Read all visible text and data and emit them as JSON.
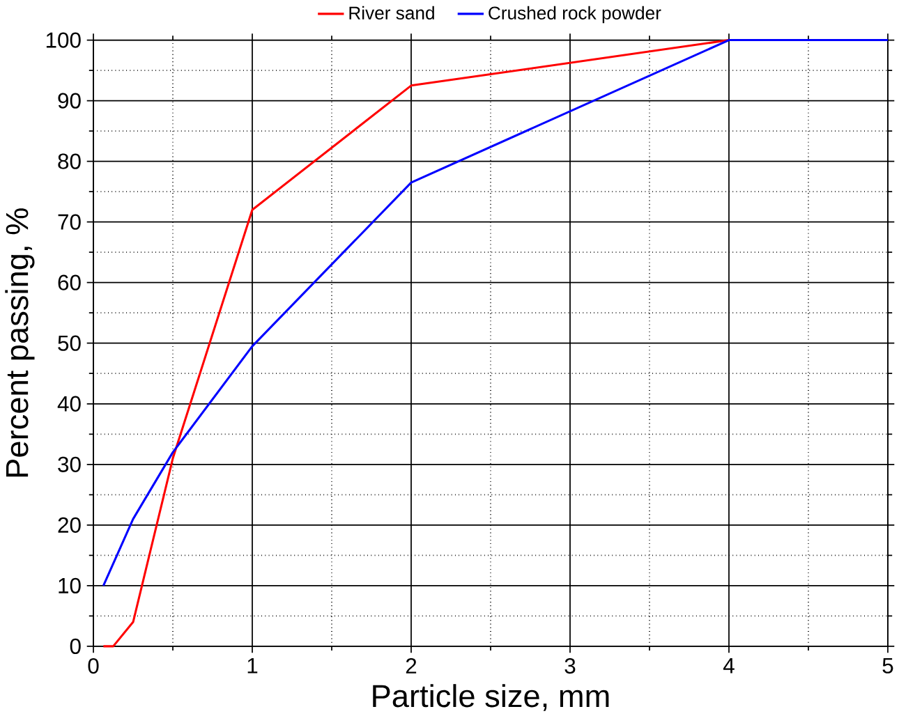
{
  "chart_data": {
    "type": "line",
    "xlabel": "Particle size, mm",
    "ylabel": "Percent passing, %",
    "series": [
      {
        "name": "River sand",
        "color": "#ff0000",
        "x": [
          0.063,
          0.125,
          0.25,
          0.5,
          1,
          2,
          4
        ],
        "values": [
          0,
          0,
          4,
          31,
          72,
          92.5,
          100
        ]
      },
      {
        "name": "Crushed rock powder",
        "color": "#0000ff",
        "x": [
          0.063,
          0.25,
          0.5,
          1,
          2,
          4,
          5
        ],
        "values": [
          10,
          21,
          32,
          49.5,
          76.5,
          100,
          100
        ]
      }
    ],
    "xlim": [
      0,
      5
    ],
    "ylim": [
      0,
      100
    ],
    "xticks": [
      0,
      1,
      2,
      3,
      4,
      5
    ],
    "yticks": [
      0,
      10,
      20,
      30,
      40,
      50,
      60,
      70,
      80,
      90,
      100
    ],
    "grid": true,
    "legend": "top",
    "marker": "none",
    "line_style": "solid"
  }
}
